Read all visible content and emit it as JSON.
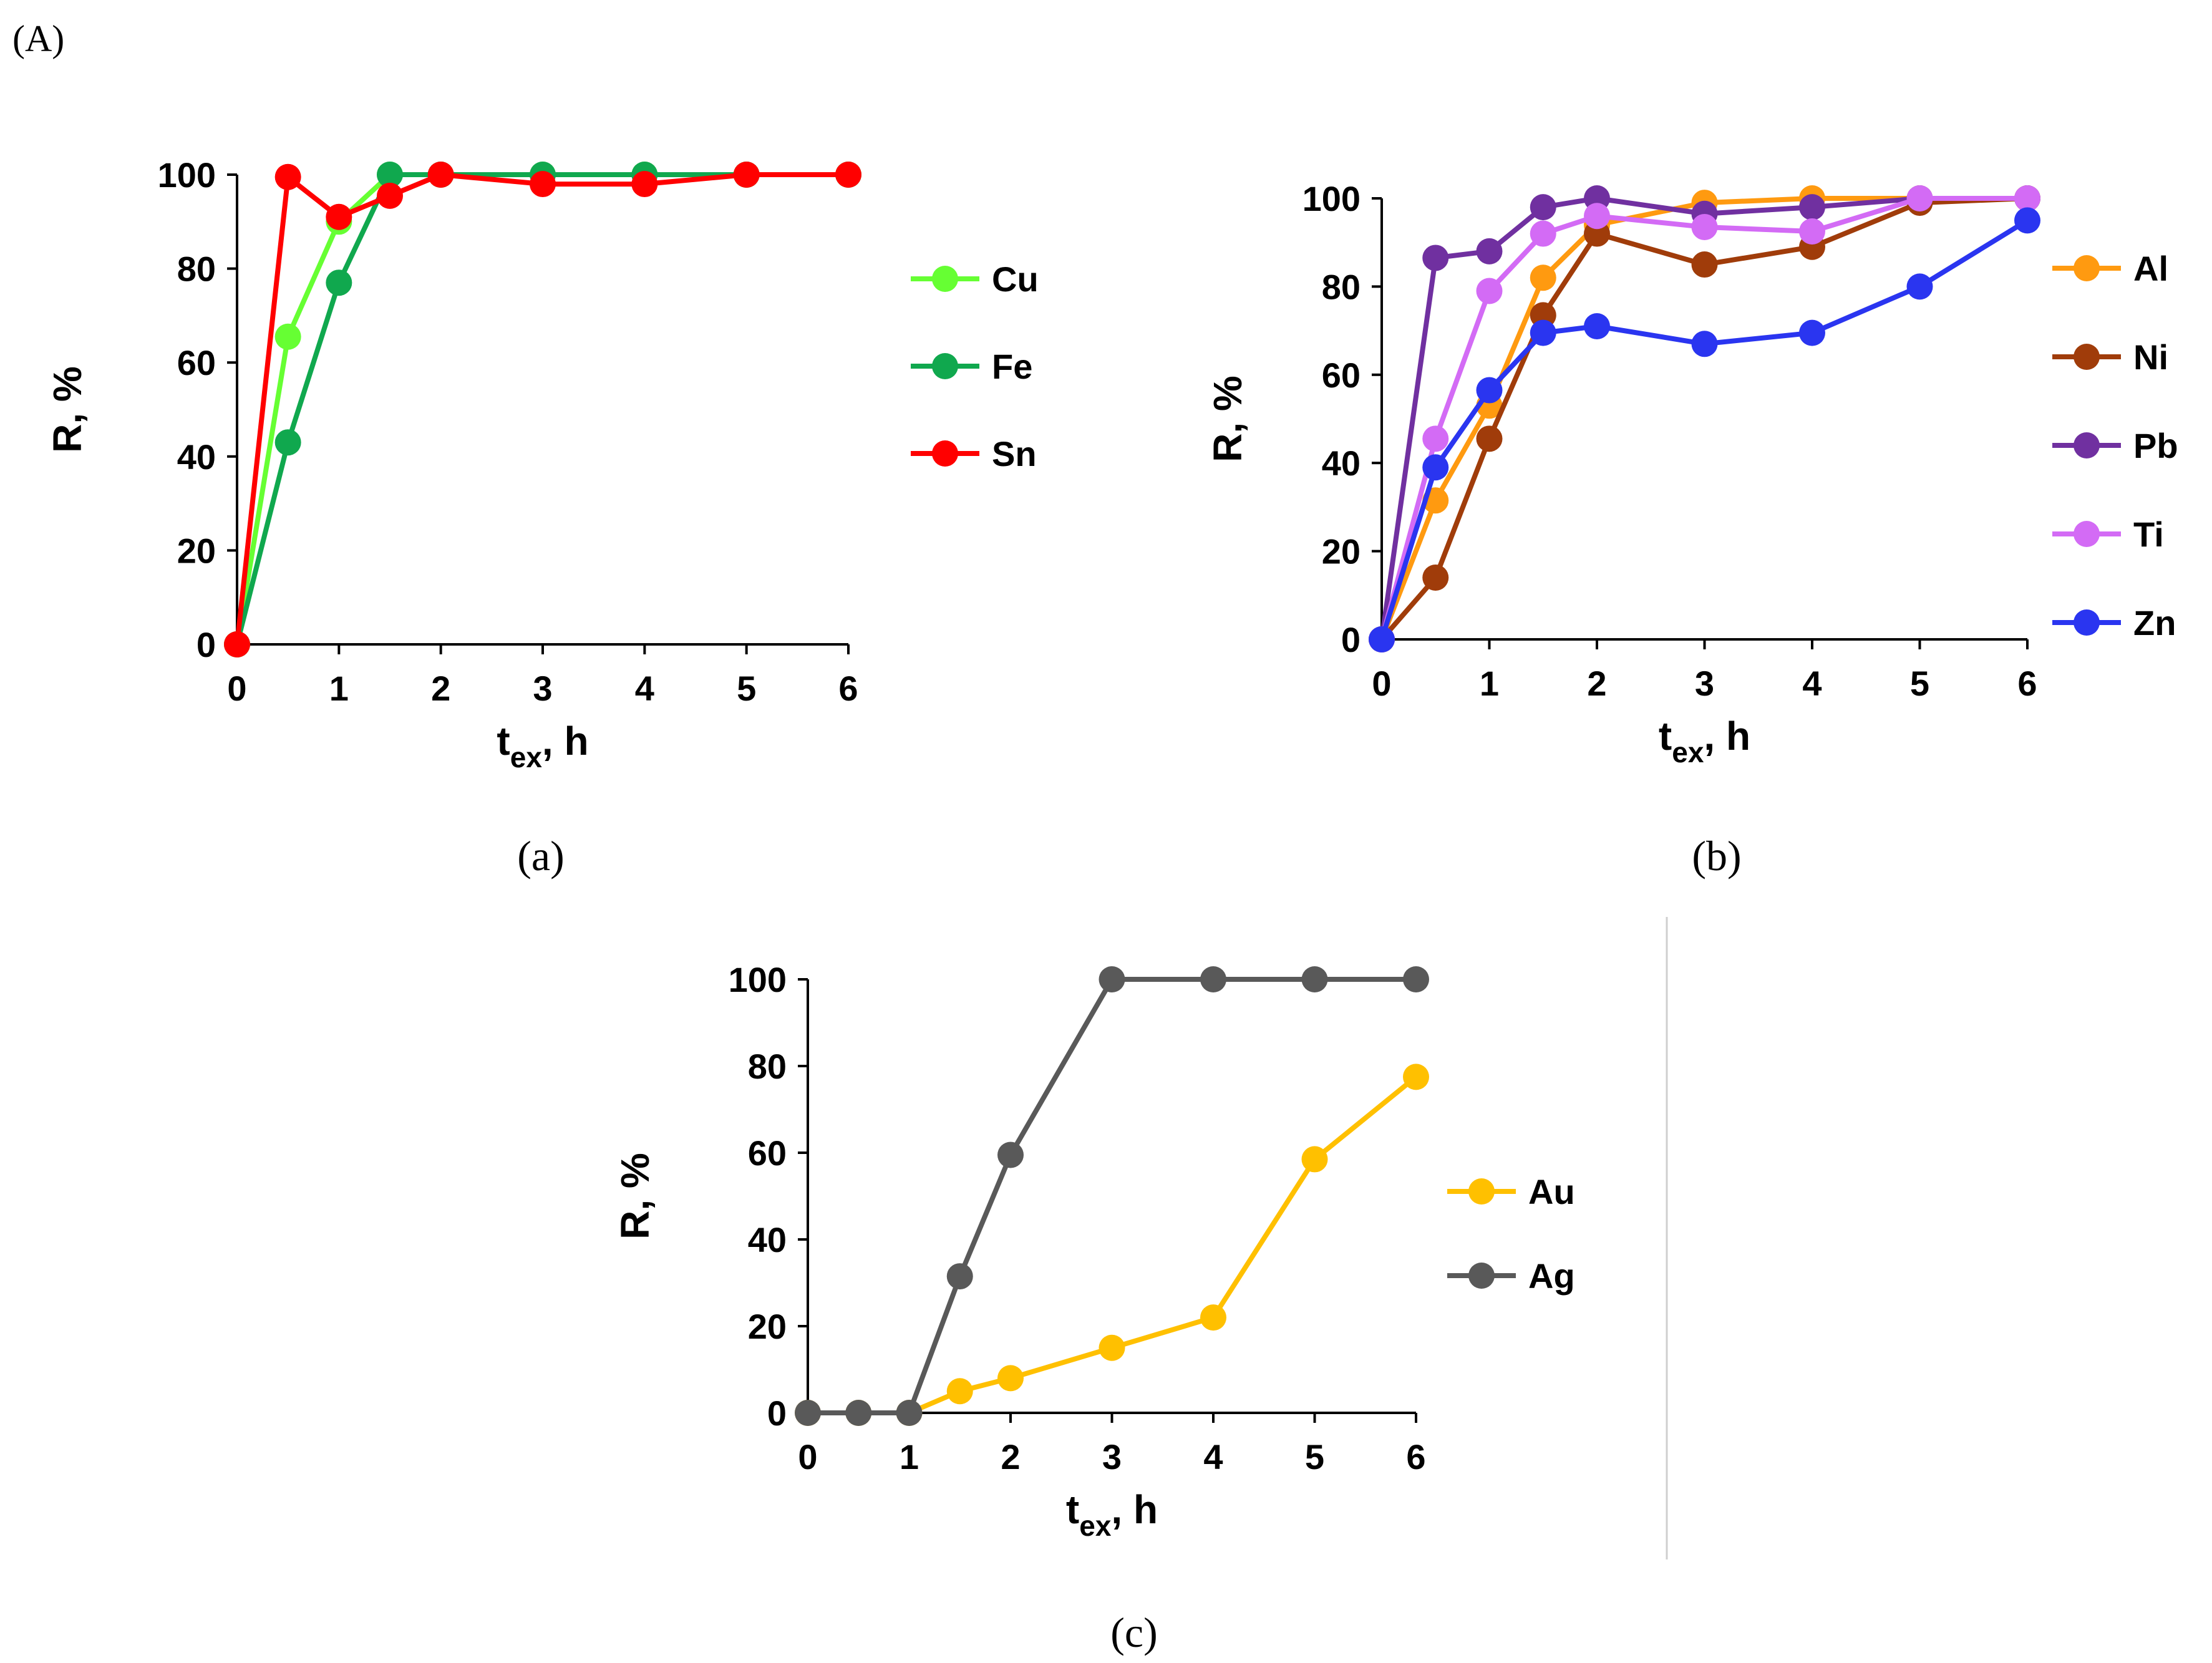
{
  "figure": {
    "label": "(A)",
    "divider": true
  },
  "chart_data": [
    {
      "id": "a",
      "caption": "(a)",
      "type": "line",
      "title": "",
      "xlabel_main": "t",
      "xlabel_sub": "ex",
      "xlabel_rest": ", h",
      "ylabel": "R, %",
      "xlim": [
        0,
        6
      ],
      "ylim": [
        0,
        100
      ],
      "x_ticks": [
        0,
        1,
        2,
        3,
        4,
        5,
        6
      ],
      "y_ticks": [
        0,
        20,
        40,
        60,
        80,
        100
      ],
      "legend_position": "right",
      "series": [
        {
          "name": "Cu",
          "color": "#66ff33",
          "x": [
            0,
            0.5,
            1,
            1.5,
            2,
            3,
            4,
            5,
            6
          ],
          "values": [
            0,
            65.5,
            90,
            100,
            100,
            100,
            100,
            100,
            100
          ]
        },
        {
          "name": "Fe",
          "color": "#10a84e",
          "x": [
            0,
            0.5,
            1,
            1.5,
            2,
            3,
            4,
            5,
            6
          ],
          "values": [
            0,
            43,
            77,
            100,
            100,
            100,
            100,
            100,
            100
          ]
        },
        {
          "name": "Sn",
          "color": "#ff0000",
          "x": [
            0,
            0.5,
            1,
            1.5,
            2,
            3,
            4,
            5,
            6
          ],
          "values": [
            0,
            99.5,
            91,
            95.5,
            100,
            98,
            98,
            100,
            100
          ]
        }
      ]
    },
    {
      "id": "b",
      "caption": "(b)",
      "type": "line",
      "title": "",
      "xlabel_main": "t",
      "xlabel_sub": "ex",
      "xlabel_rest": ", h",
      "ylabel": "R, %",
      "xlim": [
        0,
        6
      ],
      "ylim": [
        0,
        100
      ],
      "x_ticks": [
        0,
        1,
        2,
        3,
        4,
        5,
        6
      ],
      "y_ticks": [
        0,
        20,
        40,
        60,
        80,
        100
      ],
      "legend_position": "right",
      "series": [
        {
          "name": "Al",
          "color": "#ff9a10",
          "x": [
            0,
            0.5,
            1,
            1.5,
            2,
            3,
            4,
            5,
            6
          ],
          "values": [
            0,
            31.5,
            53,
            82,
            94,
            99,
            100,
            100,
            100
          ]
        },
        {
          "name": "Ni",
          "color": "#a03c0a",
          "x": [
            0,
            0.5,
            1,
            1.5,
            2,
            3,
            4,
            5,
            6
          ],
          "values": [
            0,
            14,
            45.5,
            73.5,
            92,
            85,
            89,
            99,
            100
          ]
        },
        {
          "name": "Pb",
          "color": "#7030a0",
          "x": [
            0,
            0.5,
            1,
            1.5,
            2,
            3,
            4,
            5,
            6
          ],
          "values": [
            0,
            86.5,
            88,
            98,
            100,
            96.5,
            98,
            100,
            100
          ]
        },
        {
          "name": "Ti",
          "color": "#d36bf5",
          "x": [
            0,
            0.5,
            1,
            1.5,
            2,
            3,
            4,
            5,
            6
          ],
          "values": [
            0,
            45.5,
            79,
            92,
            96,
            93.5,
            92.5,
            100,
            100
          ]
        },
        {
          "name": "Zn",
          "color": "#2a35f0",
          "x": [
            0,
            0.5,
            1,
            1.5,
            2,
            3,
            4,
            5,
            6
          ],
          "values": [
            0,
            39,
            56.5,
            69.5,
            71,
            67,
            69.5,
            80,
            95
          ]
        }
      ]
    },
    {
      "id": "c",
      "caption": "(c)",
      "type": "line",
      "title": "",
      "xlabel_main": "t",
      "xlabel_sub": "ex",
      "xlabel_rest": ", h",
      "ylabel": "R, %",
      "xlim": [
        0,
        6
      ],
      "ylim": [
        0,
        100
      ],
      "x_ticks": [
        0,
        1,
        2,
        3,
        4,
        5,
        6
      ],
      "y_ticks": [
        0,
        20,
        40,
        60,
        80,
        100
      ],
      "legend_position": "right",
      "series": [
        {
          "name": "Au",
          "color": "#ffc000",
          "x": [
            0,
            0.5,
            1,
            1.5,
            2,
            3,
            4,
            5,
            6
          ],
          "values": [
            0,
            0,
            0,
            5,
            8,
            15,
            22,
            58.5,
            77.5
          ]
        },
        {
          "name": "Ag",
          "color": "#595959",
          "x": [
            0,
            0.5,
            1,
            1.5,
            2,
            3,
            4,
            5,
            6
          ],
          "values": [
            0,
            0,
            0,
            31.5,
            59.5,
            100,
            100,
            100,
            100
          ]
        }
      ]
    }
  ]
}
